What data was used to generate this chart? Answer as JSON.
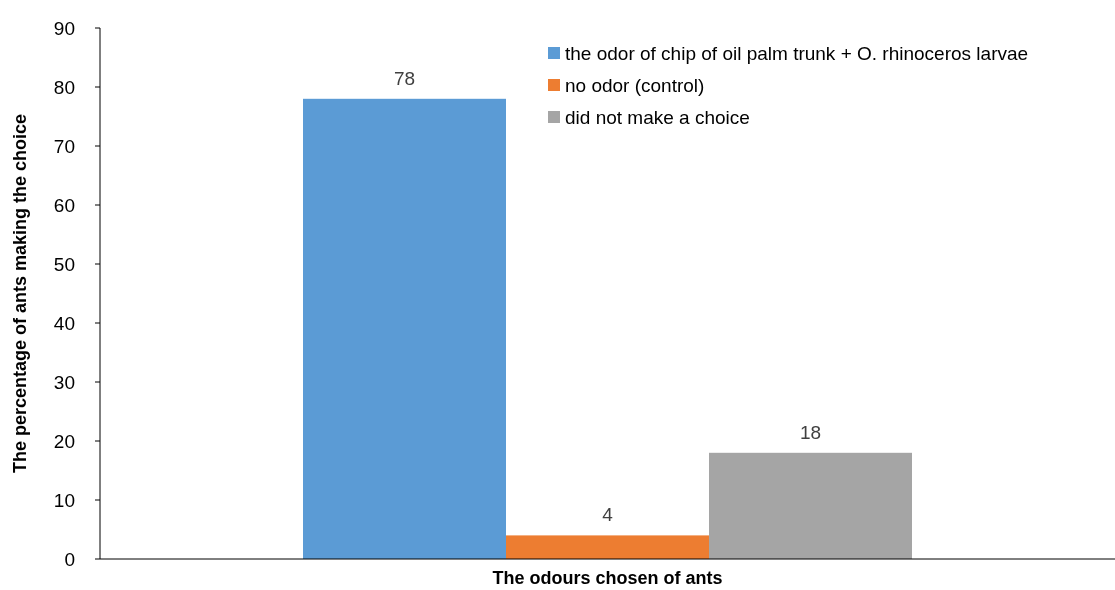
{
  "chart_data": {
    "type": "bar",
    "xlabel": "The odours chosen of ants",
    "ylabel": "The percentage of  ants making the choice",
    "categories": [
      null
    ],
    "series": [
      {
        "name": "the odor of chip of oil palm trunk + O. rhinoceros larvae",
        "color": "#5b9bd5",
        "values": [
          78
        ]
      },
      {
        "name": "no odor (control)",
        "color": "#ed7d31",
        "values": [
          4
        ]
      },
      {
        "name": "did not make a choice",
        "color": "#a5a5a5",
        "values": [
          18
        ]
      }
    ],
    "ylim": [
      0,
      90
    ],
    "yticks": [
      0,
      10,
      20,
      30,
      40,
      50,
      60,
      70,
      80,
      90
    ],
    "data_labels": true,
    "legend": "top right",
    "grid": false
  }
}
